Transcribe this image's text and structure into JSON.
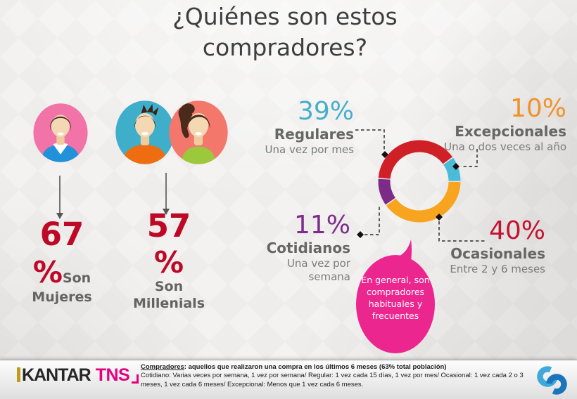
{
  "title": "¿Quiénes son estos compradores?",
  "stats": [
    {
      "value": "67",
      "percent": "%",
      "label": "Son Mujeres"
    },
    {
      "value": "57",
      "percent": "%",
      "label": "Son Millenials"
    }
  ],
  "chart_data": {
    "type": "pie",
    "donut": true,
    "start_angle_deg": 274,
    "legend_position": "callouts",
    "segments": [
      {
        "label": "Regulares",
        "value": 39,
        "color": "#d02027",
        "description": "Una vez por mes"
      },
      {
        "label": "Excepcionales",
        "value": 10,
        "color": "#4cbbd7",
        "description": "Una o dos veces al año"
      },
      {
        "label": "Ocasionales",
        "value": 40,
        "color": "#f8a41f",
        "description": "Entre 2 y 6 meses"
      },
      {
        "label": "Cotidianos",
        "value": 11,
        "color": "#7c2b87",
        "description": "Una vez por semana"
      }
    ]
  },
  "donut_labels": [
    {
      "pct": "39%",
      "name": "Regulares",
      "desc": "Una vez por mes",
      "color": "#47aec9"
    },
    {
      "pct": "10%",
      "name": "Excepcionales",
      "desc": "Una o dos veces al año",
      "color": "#f0922c"
    },
    {
      "pct": "11%",
      "name": "Cotidianos",
      "desc": "Una vez por semana",
      "color": "#7d2c8c"
    },
    {
      "pct": "40%",
      "name": "Ocasionales",
      "desc": "Entre 2 y 6 meses",
      "color": "#c21331"
    }
  ],
  "bubble": {
    "text": "En general, son compradores habituales y frecuentes",
    "color": "#ec268f"
  },
  "footer": {
    "brand": {
      "kantar": "KANTAR",
      "tns": "TNS",
      "kantar_color": "#262626",
      "tns_color": "#e5007d",
      "bar_color": "#c09a18"
    },
    "note_term": "Compradores",
    "note_rest": ": aquellos que realizaron una compra en los últimos 6 meses (63% total población)",
    "note_detail": "Cotidiano: Varias veces por semana, 1 vez por semana/ Regular: 1 vez cada 15 días, 1 vez por mes/ Ocasional: 1 vez cada 2 o 3 meses, 1 vez cada 6 meses/ Excepcional: Menos que 1 vez cada 6 meses."
  },
  "palette": {
    "title_text": "#3e3e3e",
    "big_number_red": "#bd0926",
    "avatar_pink": "#f173a7",
    "avatar_teal": "#3eaecb",
    "avatar_coral": "#f4776b",
    "shirt_blue": "#2191d9",
    "shirt_orange": "#ee6d10",
    "shirt_green": "#9bc93b"
  }
}
